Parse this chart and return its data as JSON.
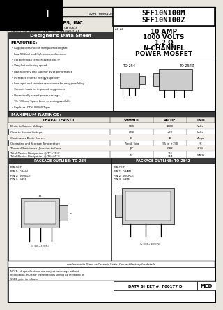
{
  "title_part1": "SFF10N100M",
  "title_part2": "SFF10N100Z",
  "subtitle1": "10 AMP",
  "subtitle2": "1000 VOLTS",
  "subtitle3": "1.2 Ω",
  "subtitle4": "N-CHANNEL",
  "subtitle5": "POWER MOSFET",
  "company": "SOLID STATE DEVICES, INC",
  "preliminary": "PRELIMINARY",
  "designer_sheet": "Designer's Data Sheet",
  "address": "14848 Firestone Boulevard   La Mirada, CA 90638",
  "phone": "Phone: (714) 623-6362 (714)   Fax: (714) 523-7121",
  "features_title": "FEATURES:",
  "features": [
    "Rugged construction with polysilicon gate",
    "Low RDS(on) and high transconductance",
    "Excellent high temperature diode fy",
    "Very fast switching speed",
    "Fast recovery and superior dv/dt performance",
    "Increased reverse energy capability",
    "Low input and transfer capacitance for easy paralleling",
    "Ceramic basis for improved ruggedness",
    "Hermetically sealed power package",
    "TX, TXV and Space Level screening available",
    "Replaces: DTN10N100 Types"
  ],
  "max_ratings_title": "MAXIMUM RATINGS:",
  "char_col": "CHARACTERISTIC",
  "sym_col": "SYMBOL",
  "val_col": "VALUE",
  "unit_col": "UNIT",
  "ratings": [
    {
      "char": "Drain to Source Voltage",
      "sym": "VDS",
      "val": "1000",
      "unit": "Volts"
    },
    {
      "char": "Gate to Source Voltage",
      "sym": "VGS",
      "val": "±20",
      "unit": "Volts"
    },
    {
      "char": "Continuous Drain Current",
      "sym": "ID",
      "val": "10",
      "unit": "Amps"
    },
    {
      "char": "Operating and Storage Temperature",
      "sym": "Top & Tstg",
      "val": "-55 to +150",
      "unit": "°C"
    },
    {
      "char": "Thermal Resistance, Junction to Case",
      "sym": "θJC",
      "val": "0.83",
      "unit": "°C/W"
    },
    {
      "char": "Total Device Dissipation @ TC=25°C\nTotal Device Dissipation @ TC=65°C",
      "sym": "PD",
      "val": "155\n114",
      "unit": "Watts"
    }
  ],
  "pkg_to254_title": "PACKAGE OUTLINE: TO-254",
  "pkg_to254z_title": "PACKAGE OUTLINE: TO-254Z",
  "pin_out_254": "PIN OUT:\nPIN 1: DRAIN\nPIN 2: SOURCE\nPIN 3: GATE",
  "pin_out_254z": "PIN OUT:\nPIN 1: DRAIN\nPIN 2: SOURCE\nPIN 3: GATE",
  "available_note": "Available with Glass or Ceramic Seals. Contact Factory for details.",
  "note_text": "NOTE: All specifications are subject to change without\nnotification. MO's for these devices should be reviewed at\nSSDD prior to release.",
  "datasheet_num": "DATA SHEET #: F00177 D",
  "med_text": "MED",
  "bg_color": "#e8e4de",
  "section_header_bg": "#3a3a3a",
  "col_header_bg": "#1a1a1a",
  "orange_color": "#d4883a"
}
